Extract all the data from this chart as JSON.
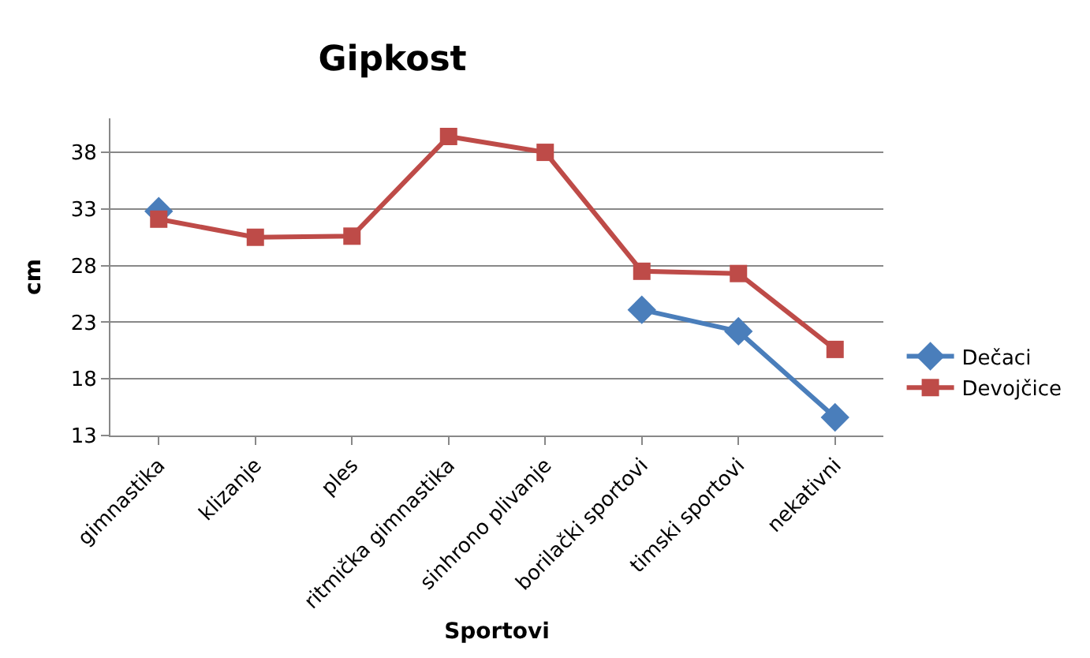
{
  "chart_data": {
    "type": "line",
    "title": "Gipkost",
    "xlabel": "Sportovi",
    "ylabel": "cm",
    "categories": [
      "gimnastika",
      "klizanje",
      "ples",
      "ritmička gimnastika",
      "sinhrono plivanje",
      "borilački sportovi",
      "timski sportovi",
      "nekativni"
    ],
    "series": [
      {
        "name": "Dečaci",
        "color": "#4a7ebb",
        "marker": "diamond",
        "values": [
          32.8,
          null,
          null,
          null,
          null,
          24.1,
          22.2,
          14.6
        ]
      },
      {
        "name": "Devojčice",
        "color": "#be4b48",
        "marker": "square",
        "values": [
          32.1,
          30.5,
          30.6,
          39.4,
          38.0,
          27.5,
          27.3,
          20.6
        ]
      }
    ],
    "ylim": [
      13,
      41
    ],
    "yticks": [
      13,
      18,
      23,
      28,
      33,
      38
    ],
    "grid": "y",
    "legend": "right"
  }
}
